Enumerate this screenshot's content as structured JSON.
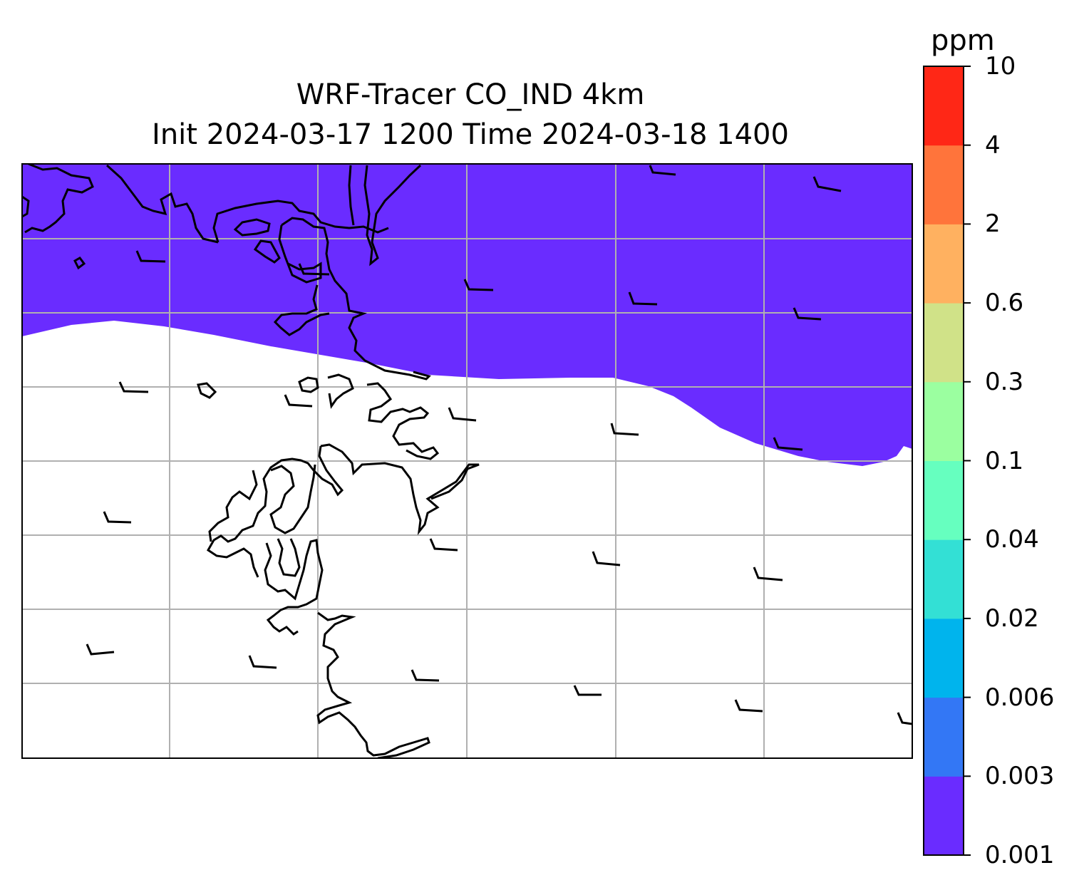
{
  "title_line1": "WRF-Tracer CO_IND 4km",
  "title_line2": "Init 2024-03-17 1200 Time 2024-03-18 1400",
  "colorbar": {
    "unit": "ppm",
    "ticks": [
      "0.001",
      "0.003",
      "0.006",
      "0.02",
      "0.04",
      "0.1",
      "0.3",
      "0.6",
      "2",
      "4",
      "10"
    ],
    "colors": [
      "#6a2cff",
      "#3377f5",
      "#00b4ed",
      "#33e0d5",
      "#66ffbf",
      "#9bffa0",
      "#d0e288",
      "#ffb160",
      "#ff743b",
      "#ff2716"
    ]
  },
  "map": {
    "fill_color": "#6a2cff",
    "plume": "lowest concentration band covers northern part of domain",
    "gridlines": true
  }
}
